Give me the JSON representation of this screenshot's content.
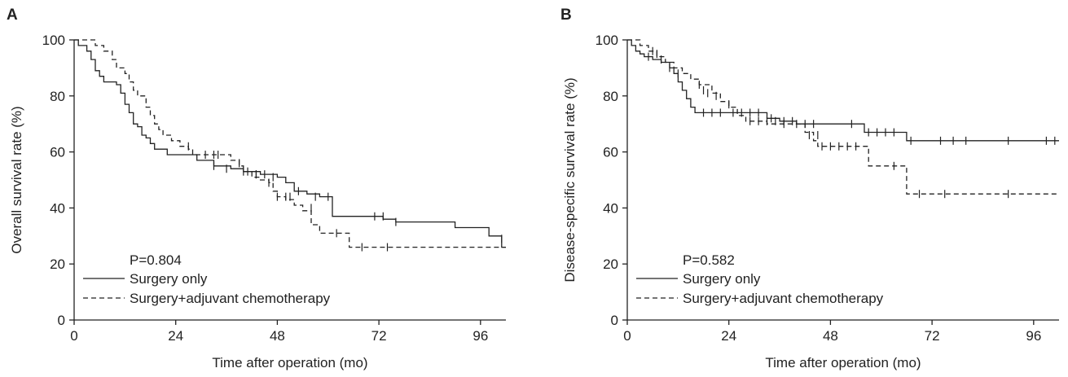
{
  "chart_data": [
    {
      "type": "line",
      "panel_label": "A",
      "xlabel": "Time after operation (mo)",
      "ylabel": "Overall survival rate (%)",
      "xlim": [
        0,
        102
      ],
      "ylim": [
        0,
        100
      ],
      "xticks": [
        0,
        24,
        48,
        72,
        96
      ],
      "yticks": [
        0,
        20,
        40,
        60,
        80,
        100
      ],
      "p_value_text": "P=0.804",
      "legend_position": "bottom-left",
      "series": [
        {
          "name": "Surgery only",
          "style": "solid",
          "steps": [
            [
              0,
              100
            ],
            [
              1,
              98
            ],
            [
              3,
              96
            ],
            [
              4,
              93
            ],
            [
              5,
              89
            ],
            [
              6,
              87
            ],
            [
              7,
              85
            ],
            [
              10,
              84
            ],
            [
              11,
              81
            ],
            [
              12,
              77
            ],
            [
              13,
              74
            ],
            [
              14,
              70
            ],
            [
              15,
              69
            ],
            [
              16,
              66
            ],
            [
              17,
              65
            ],
            [
              18,
              63
            ],
            [
              19,
              61
            ],
            [
              22,
              59
            ],
            [
              28,
              59
            ],
            [
              29,
              57
            ],
            [
              33,
              55
            ],
            [
              37,
              54
            ],
            [
              40,
              53
            ],
            [
              44,
              52
            ],
            [
              48,
              51
            ],
            [
              50,
              49
            ],
            [
              52,
              46
            ],
            [
              55,
              45
            ],
            [
              58,
              44
            ],
            [
              61,
              37
            ],
            [
              70,
              37
            ],
            [
              73,
              36
            ],
            [
              76,
              35
            ],
            [
              90,
              33
            ],
            [
              98,
              30
            ],
            [
              101,
              26
            ],
            [
              102,
              26
            ]
          ],
          "censored": [
            [
              33,
              55
            ],
            [
              36,
              54
            ],
            [
              40,
              53
            ],
            [
              43,
              52
            ],
            [
              45,
              52
            ],
            [
              47,
              51
            ],
            [
              53,
              46
            ],
            [
              57,
              44
            ],
            [
              60,
              44
            ],
            [
              71,
              37
            ],
            [
              73,
              37
            ],
            [
              76,
              35
            ],
            [
              101,
              29
            ]
          ]
        },
        {
          "name": "Surgery+adjuvant chemotherapy",
          "style": "dashed",
          "steps": [
            [
              0,
              100
            ],
            [
              4,
              100
            ],
            [
              5,
              98
            ],
            [
              7,
              96
            ],
            [
              9,
              93
            ],
            [
              10,
              90
            ],
            [
              12,
              88
            ],
            [
              13,
              85
            ],
            [
              14,
              82
            ],
            [
              15,
              80
            ],
            [
              17,
              76
            ],
            [
              18,
              73
            ],
            [
              19,
              70
            ],
            [
              20,
              68
            ],
            [
              21,
              66
            ],
            [
              23,
              64
            ],
            [
              25,
              62
            ],
            [
              27,
              61
            ],
            [
              28,
              59
            ],
            [
              31,
              59
            ],
            [
              37,
              57
            ],
            [
              39,
              55
            ],
            [
              40,
              53
            ],
            [
              42,
              51
            ],
            [
              44,
              50
            ],
            [
              46,
              49
            ],
            [
              47,
              46
            ],
            [
              48,
              44
            ],
            [
              50,
              43
            ],
            [
              52,
              41
            ],
            [
              54,
              39
            ],
            [
              56,
              34
            ],
            [
              58,
              31
            ],
            [
              61,
              31
            ],
            [
              65,
              26
            ],
            [
              102,
              26
            ]
          ],
          "censored": [
            [
              27,
              62
            ],
            [
              31,
              59
            ],
            [
              33,
              59
            ],
            [
              34,
              59
            ],
            [
              39,
              56
            ],
            [
              41,
              53
            ],
            [
              43,
              52
            ],
            [
              46,
              49
            ],
            [
              48,
              44
            ],
            [
              50,
              44
            ],
            [
              51,
              44
            ],
            [
              56,
              40
            ],
            [
              62,
              31
            ],
            [
              68,
              26
            ],
            [
              74,
              26
            ]
          ]
        }
      ]
    },
    {
      "type": "line",
      "panel_label": "B",
      "xlabel": "Time after operation (mo)",
      "ylabel": "Disease-specific survival rate (%)",
      "xlim": [
        0,
        102
      ],
      "ylim": [
        0,
        100
      ],
      "xticks": [
        0,
        24,
        48,
        72,
        96
      ],
      "yticks": [
        0,
        20,
        40,
        60,
        80,
        100
      ],
      "p_value_text": "P=0.582",
      "legend_position": "bottom-left",
      "series": [
        {
          "name": "Surgery only",
          "style": "solid",
          "steps": [
            [
              0,
              100
            ],
            [
              1,
              98
            ],
            [
              2,
              96
            ],
            [
              3,
              95
            ],
            [
              4,
              94
            ],
            [
              6,
              93
            ],
            [
              8,
              92
            ],
            [
              10,
              90
            ],
            [
              11,
              88
            ],
            [
              12,
              85
            ],
            [
              13,
              82
            ],
            [
              14,
              79
            ],
            [
              15,
              76
            ],
            [
              16,
              74
            ],
            [
              32,
              74
            ],
            [
              33,
              72
            ],
            [
              36,
              71
            ],
            [
              40,
              70
            ],
            [
              55,
              70
            ],
            [
              56,
              67
            ],
            [
              64,
              67
            ],
            [
              66,
              64
            ],
            [
              102,
              64
            ]
          ],
          "censored": [
            [
              5,
              94
            ],
            [
              8,
              93
            ],
            [
              10,
              90
            ],
            [
              18,
              74
            ],
            [
              20,
              74
            ],
            [
              22,
              74
            ],
            [
              25,
              74
            ],
            [
              27,
              74
            ],
            [
              29,
              74
            ],
            [
              31,
              74
            ],
            [
              34,
              72
            ],
            [
              37,
              71
            ],
            [
              39,
              71
            ],
            [
              42,
              70
            ],
            [
              44,
              70
            ],
            [
              53,
              70
            ],
            [
              57,
              67
            ],
            [
              59,
              67
            ],
            [
              61,
              67
            ],
            [
              63,
              67
            ],
            [
              67,
              64
            ],
            [
              74,
              64
            ],
            [
              77,
              64
            ],
            [
              80,
              64
            ],
            [
              90,
              64
            ],
            [
              99,
              64
            ],
            [
              101,
              64
            ]
          ]
        },
        {
          "name": "Surgery+adjuvant chemotherapy",
          "style": "dashed",
          "steps": [
            [
              0,
              100
            ],
            [
              3,
              98
            ],
            [
              5,
              96
            ],
            [
              7,
              94
            ],
            [
              9,
              92
            ],
            [
              11,
              90
            ],
            [
              13,
              88
            ],
            [
              15,
              86
            ],
            [
              17,
              84
            ],
            [
              20,
              81
            ],
            [
              22,
              78
            ],
            [
              24,
              76
            ],
            [
              26,
              73
            ],
            [
              28,
              71
            ],
            [
              31,
              71
            ],
            [
              33,
              70
            ],
            [
              35,
              70
            ],
            [
              40,
              70
            ],
            [
              42,
              67
            ],
            [
              44,
              64
            ],
            [
              45,
              62
            ],
            [
              55,
              62
            ],
            [
              57,
              55
            ],
            [
              64,
              55
            ],
            [
              66,
              45
            ],
            [
              102,
              45
            ]
          ],
          "censored": [
            [
              6,
              96
            ],
            [
              7,
              95
            ],
            [
              12,
              88
            ],
            [
              17,
              84
            ],
            [
              18,
              82
            ],
            [
              19,
              81
            ],
            [
              21,
              80
            ],
            [
              24,
              77
            ],
            [
              29,
              71
            ],
            [
              31,
              71
            ],
            [
              33,
              71
            ],
            [
              35,
              71
            ],
            [
              37,
              70
            ],
            [
              40,
              70
            ],
            [
              43,
              66
            ],
            [
              45,
              66
            ],
            [
              46,
              62
            ],
            [
              48,
              62
            ],
            [
              50,
              62
            ],
            [
              52,
              62
            ],
            [
              54,
              62
            ],
            [
              63,
              55
            ],
            [
              69,
              45
            ],
            [
              75,
              45
            ],
            [
              90,
              45
            ]
          ]
        }
      ]
    }
  ]
}
